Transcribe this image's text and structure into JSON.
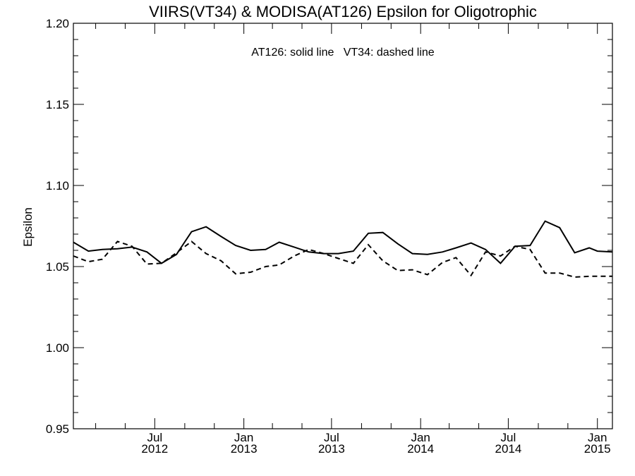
{
  "chart_data": {
    "type": "line",
    "title": "VIIRS(VT34) & MODISA(AT126)  Epsilon for Oligotrophic",
    "annotation": "AT126: solid line   VT34: dashed line",
    "ylabel": "Epsilon",
    "xlabel": "",
    "ylim": [
      0.95,
      1.2
    ],
    "xlim": [
      "2012-01-15",
      "2015-02-01"
    ],
    "y_ticks": [
      {
        "value": 0.95,
        "label": "0.95"
      },
      {
        "value": 1.0,
        "label": "1.00"
      },
      {
        "value": 1.05,
        "label": "1.05"
      },
      {
        "value": 1.1,
        "label": "1.10"
      },
      {
        "value": 1.15,
        "label": "1.15"
      },
      {
        "value": 1.2,
        "label": "1.20"
      }
    ],
    "x_ticks": [
      {
        "date": "2012-07-01",
        "month": "Jul",
        "year": "2012"
      },
      {
        "date": "2013-01-01",
        "month": "Jan",
        "year": "2013"
      },
      {
        "date": "2013-07-01",
        "month": "Jul",
        "year": "2013"
      },
      {
        "date": "2014-01-01",
        "month": "Jan",
        "year": "2014"
      },
      {
        "date": "2014-07-01",
        "month": "Jul",
        "year": "2014"
      },
      {
        "date": "2015-01-01",
        "month": "Jan",
        "year": "2015"
      }
    ],
    "x_minor_ticks": [
      "2012-03-01",
      "2012-05-01",
      "2012-09-01",
      "2012-11-01",
      "2013-03-01",
      "2013-05-01",
      "2013-09-01",
      "2013-11-01",
      "2014-03-01",
      "2014-05-01",
      "2014-09-01",
      "2014-11-01"
    ],
    "grid": false,
    "series": [
      {
        "name": "AT126",
        "style": "solid",
        "color": "#000000",
        "points": [
          [
            "2012-01-15",
            1.065
          ],
          [
            "2012-02-15",
            1.0595
          ],
          [
            "2012-03-15",
            1.0605
          ],
          [
            "2012-04-15",
            1.061
          ],
          [
            "2012-05-15",
            1.062
          ],
          [
            "2012-06-15",
            1.059
          ],
          [
            "2012-07-15",
            1.052
          ],
          [
            "2012-08-15",
            1.0575
          ],
          [
            "2012-09-15",
            1.0715
          ],
          [
            "2012-10-15",
            1.0745
          ],
          [
            "2012-11-15",
            1.0685
          ],
          [
            "2012-12-15",
            1.063
          ],
          [
            "2013-01-15",
            1.06
          ],
          [
            "2013-02-15",
            1.0605
          ],
          [
            "2013-03-15",
            1.065
          ],
          [
            "2013-04-15",
            1.062
          ],
          [
            "2013-05-15",
            1.059
          ],
          [
            "2013-06-15",
            1.058
          ],
          [
            "2013-07-15",
            1.058
          ],
          [
            "2013-08-15",
            1.0595
          ],
          [
            "2013-09-15",
            1.0705
          ],
          [
            "2013-10-15",
            1.071
          ],
          [
            "2013-11-15",
            1.064
          ],
          [
            "2013-12-15",
            1.058
          ],
          [
            "2014-01-15",
            1.0575
          ],
          [
            "2014-02-15",
            1.059
          ],
          [
            "2014-03-15",
            1.0615
          ],
          [
            "2014-04-15",
            1.0645
          ],
          [
            "2014-05-15",
            1.0605
          ],
          [
            "2014-06-15",
            1.052
          ],
          [
            "2014-07-15",
            1.0625
          ],
          [
            "2014-08-15",
            1.063
          ],
          [
            "2014-09-15",
            1.078
          ],
          [
            "2014-10-15",
            1.074
          ],
          [
            "2014-11-15",
            1.0585
          ],
          [
            "2014-12-15",
            1.0615
          ],
          [
            "2015-01-01",
            1.0595
          ],
          [
            "2015-02-01",
            1.059
          ]
        ]
      },
      {
        "name": "VT34",
        "style": "dashed",
        "color": "#000000",
        "points": [
          [
            "2012-01-15",
            1.0565
          ],
          [
            "2012-02-15",
            1.053
          ],
          [
            "2012-03-15",
            1.0545
          ],
          [
            "2012-04-15",
            1.0655
          ],
          [
            "2012-05-15",
            1.0625
          ],
          [
            "2012-06-15",
            1.0515
          ],
          [
            "2012-07-15",
            1.052
          ],
          [
            "2012-08-15",
            1.0585
          ],
          [
            "2012-09-15",
            1.0655
          ],
          [
            "2012-10-15",
            1.058
          ],
          [
            "2012-11-15",
            1.0535
          ],
          [
            "2012-12-15",
            1.0455
          ],
          [
            "2013-01-15",
            1.0465
          ],
          [
            "2013-02-15",
            1.05
          ],
          [
            "2013-03-15",
            1.051
          ],
          [
            "2013-04-15",
            1.0565
          ],
          [
            "2013-05-15",
            1.0605
          ],
          [
            "2013-06-15",
            1.058
          ],
          [
            "2013-07-15",
            1.055
          ],
          [
            "2013-08-15",
            1.052
          ],
          [
            "2013-09-15",
            1.0635
          ],
          [
            "2013-10-15",
            1.0535
          ],
          [
            "2013-11-15",
            1.0475
          ],
          [
            "2013-12-15",
            1.048
          ],
          [
            "2014-01-15",
            1.045
          ],
          [
            "2014-02-15",
            1.0525
          ],
          [
            "2014-03-15",
            1.0555
          ],
          [
            "2014-04-15",
            1.0445
          ],
          [
            "2014-05-15",
            1.059
          ],
          [
            "2014-06-15",
            1.0565
          ],
          [
            "2014-07-15",
            1.0625
          ],
          [
            "2014-08-15",
            1.0605
          ],
          [
            "2014-09-15",
            1.046
          ],
          [
            "2014-10-15",
            1.046
          ],
          [
            "2014-11-15",
            1.0435
          ],
          [
            "2014-12-15",
            1.044
          ],
          [
            "2015-01-01",
            1.044
          ],
          [
            "2015-02-01",
            1.044
          ]
        ]
      }
    ]
  }
}
